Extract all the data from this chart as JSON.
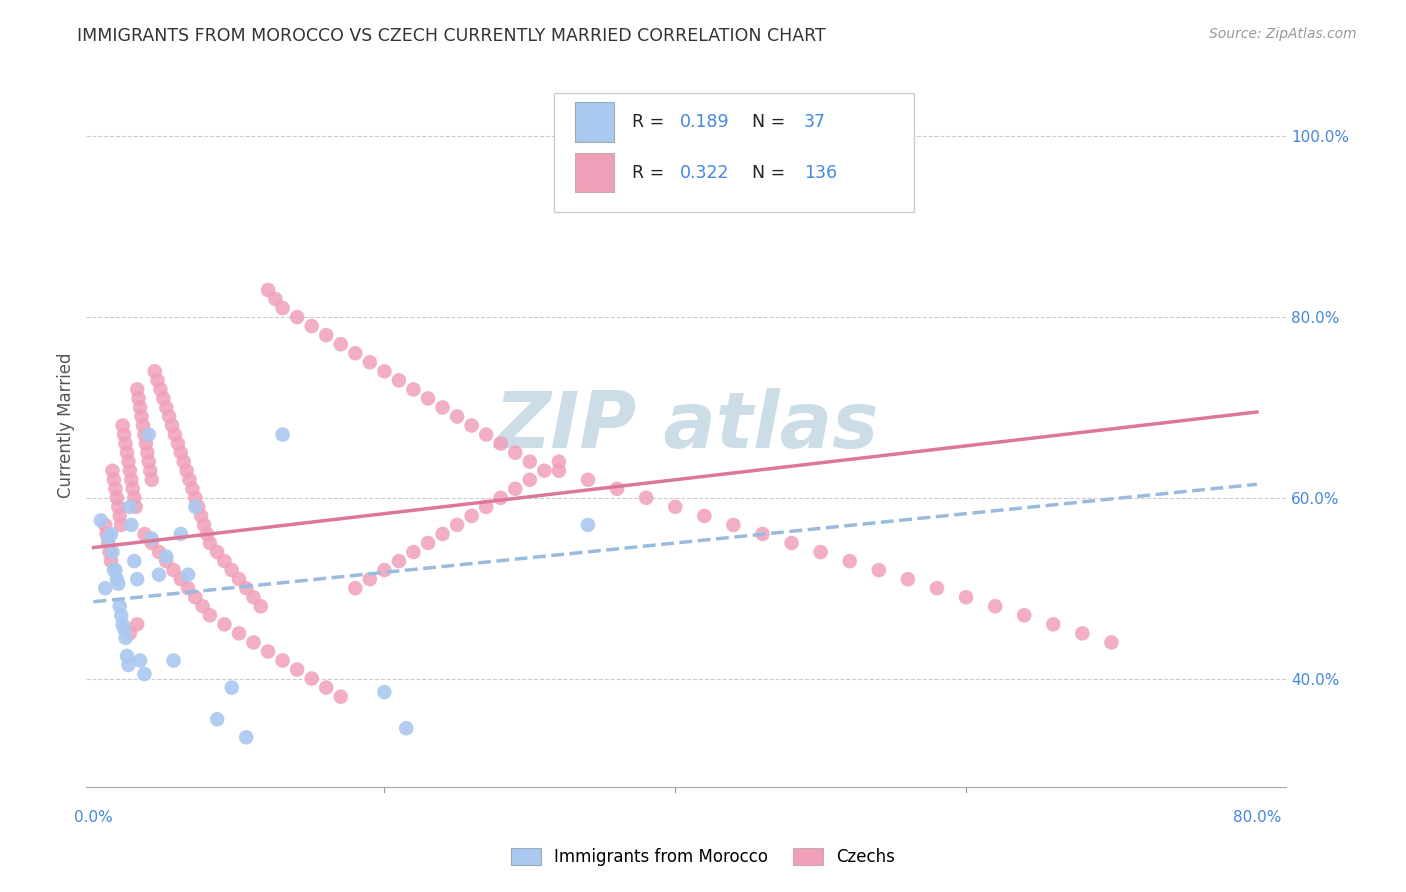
{
  "title": "IMMIGRANTS FROM MOROCCO VS CZECH CURRENTLY MARRIED CORRELATION CHART",
  "source": "Source: ZipAtlas.com",
  "ylabel": "Currently Married",
  "ytick_labels": [
    "100.0%",
    "80.0%",
    "60.0%",
    "40.0%"
  ],
  "ytick_values": [
    1.0,
    0.8,
    0.6,
    0.4
  ],
  "xlim": [
    -0.005,
    0.82
  ],
  "ylim": [
    0.28,
    1.08
  ],
  "legend1_R": "0.189",
  "legend1_N": "37",
  "legend2_R": "0.322",
  "legend2_N": "136",
  "color_blue": "#aac8f0",
  "color_pink": "#f0a0b8",
  "color_blue_text": "#4488dd",
  "trend_blue_color": "#99bbdd",
  "trend_pink_color": "#dd7799",
  "watermark_color": "#ccdde8",
  "blue_x": [
    0.005,
    0.008,
    0.01,
    0.012,
    0.013,
    0.014,
    0.015,
    0.016,
    0.017,
    0.018,
    0.019,
    0.02,
    0.021,
    0.022,
    0.023,
    0.024,
    0.025,
    0.026,
    0.028,
    0.03,
    0.032,
    0.035,
    0.038,
    0.04,
    0.045,
    0.05,
    0.055,
    0.06,
    0.065,
    0.07,
    0.085,
    0.095,
    0.105,
    0.13,
    0.2,
    0.215,
    0.34
  ],
  "blue_y": [
    0.575,
    0.5,
    0.555,
    0.56,
    0.54,
    0.52,
    0.52,
    0.51,
    0.505,
    0.48,
    0.47,
    0.46,
    0.455,
    0.445,
    0.425,
    0.415,
    0.59,
    0.57,
    0.53,
    0.51,
    0.42,
    0.405,
    0.67,
    0.555,
    0.515,
    0.535,
    0.42,
    0.56,
    0.515,
    0.59,
    0.355,
    0.39,
    0.335,
    0.67,
    0.385,
    0.345,
    0.57
  ],
  "pink_x": [
    0.008,
    0.009,
    0.01,
    0.011,
    0.012,
    0.013,
    0.014,
    0.015,
    0.016,
    0.017,
    0.018,
    0.019,
    0.02,
    0.021,
    0.022,
    0.023,
    0.024,
    0.025,
    0.026,
    0.027,
    0.028,
    0.029,
    0.03,
    0.031,
    0.032,
    0.033,
    0.034,
    0.035,
    0.036,
    0.037,
    0.038,
    0.039,
    0.04,
    0.042,
    0.044,
    0.046,
    0.048,
    0.05,
    0.052,
    0.054,
    0.056,
    0.058,
    0.06,
    0.062,
    0.064,
    0.066,
    0.068,
    0.07,
    0.072,
    0.074,
    0.076,
    0.078,
    0.08,
    0.085,
    0.09,
    0.095,
    0.1,
    0.105,
    0.11,
    0.115,
    0.12,
    0.125,
    0.13,
    0.14,
    0.15,
    0.16,
    0.17,
    0.18,
    0.19,
    0.2,
    0.21,
    0.22,
    0.23,
    0.24,
    0.25,
    0.26,
    0.27,
    0.28,
    0.29,
    0.3,
    0.32,
    0.34,
    0.36,
    0.38,
    0.4,
    0.42,
    0.44,
    0.46,
    0.48,
    0.5,
    0.52,
    0.54,
    0.56,
    0.58,
    0.6,
    0.62,
    0.64,
    0.66,
    0.68,
    0.7,
    0.03,
    0.025,
    0.035,
    0.04,
    0.045,
    0.05,
    0.055,
    0.06,
    0.065,
    0.07,
    0.075,
    0.08,
    0.09,
    0.1,
    0.11,
    0.12,
    0.13,
    0.14,
    0.15,
    0.16,
    0.17,
    0.18,
    0.19,
    0.2,
    0.21,
    0.22,
    0.23,
    0.24,
    0.25,
    0.26,
    0.27,
    0.28,
    0.29,
    0.3,
    0.31,
    0.32
  ],
  "pink_y": [
    0.57,
    0.56,
    0.55,
    0.54,
    0.53,
    0.63,
    0.62,
    0.61,
    0.6,
    0.59,
    0.58,
    0.57,
    0.68,
    0.67,
    0.66,
    0.65,
    0.64,
    0.63,
    0.62,
    0.61,
    0.6,
    0.59,
    0.72,
    0.71,
    0.7,
    0.69,
    0.68,
    0.67,
    0.66,
    0.65,
    0.64,
    0.63,
    0.62,
    0.74,
    0.73,
    0.72,
    0.71,
    0.7,
    0.69,
    0.68,
    0.67,
    0.66,
    0.65,
    0.64,
    0.63,
    0.62,
    0.61,
    0.6,
    0.59,
    0.58,
    0.57,
    0.56,
    0.55,
    0.54,
    0.53,
    0.52,
    0.51,
    0.5,
    0.49,
    0.48,
    0.83,
    0.82,
    0.81,
    0.8,
    0.79,
    0.78,
    0.77,
    0.76,
    0.75,
    0.74,
    0.73,
    0.72,
    0.71,
    0.7,
    0.69,
    0.68,
    0.67,
    0.66,
    0.65,
    0.64,
    0.63,
    0.62,
    0.61,
    0.6,
    0.59,
    0.58,
    0.57,
    0.56,
    0.55,
    0.54,
    0.53,
    0.52,
    0.51,
    0.5,
    0.49,
    0.48,
    0.47,
    0.46,
    0.45,
    0.44,
    0.46,
    0.45,
    0.56,
    0.55,
    0.54,
    0.53,
    0.52,
    0.51,
    0.5,
    0.49,
    0.48,
    0.47,
    0.46,
    0.45,
    0.44,
    0.43,
    0.42,
    0.41,
    0.4,
    0.39,
    0.38,
    0.5,
    0.51,
    0.52,
    0.53,
    0.54,
    0.55,
    0.56,
    0.57,
    0.58,
    0.59,
    0.6,
    0.61,
    0.62,
    0.63,
    0.64
  ],
  "trend_blue_x0": 0.0,
  "trend_blue_x1": 0.8,
  "trend_blue_y0": 0.485,
  "trend_blue_y1": 0.615,
  "trend_pink_x0": 0.0,
  "trend_pink_x1": 0.8,
  "trend_pink_y0": 0.545,
  "trend_pink_y1": 0.695
}
